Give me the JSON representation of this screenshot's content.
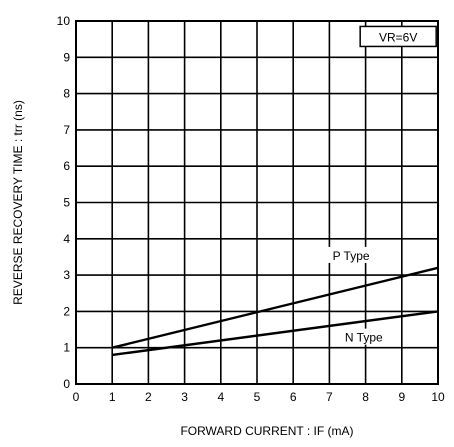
{
  "chart_data": {
    "type": "line",
    "title": "",
    "xlabel": "FORWARD  CURRENT : IF (mA)",
    "ylabel": "REVERSE  RECOVERY  TIME : trr (ns)",
    "xlim": [
      0,
      10
    ],
    "ylim": [
      0,
      10
    ],
    "x_ticks": [
      0,
      1,
      2,
      3,
      4,
      5,
      6,
      7,
      8,
      9,
      10
    ],
    "y_ticks": [
      0,
      1,
      2,
      3,
      4,
      5,
      6,
      7,
      8,
      9,
      10
    ],
    "grid": true,
    "condition_label": "VR=6V",
    "series": [
      {
        "name": "P Type",
        "x": [
          1,
          10
        ],
        "y": [
          1.0,
          3.2
        ]
      },
      {
        "name": "N Type",
        "x": [
          1,
          10
        ],
        "y": [
          0.8,
          2.0
        ]
      }
    ]
  }
}
